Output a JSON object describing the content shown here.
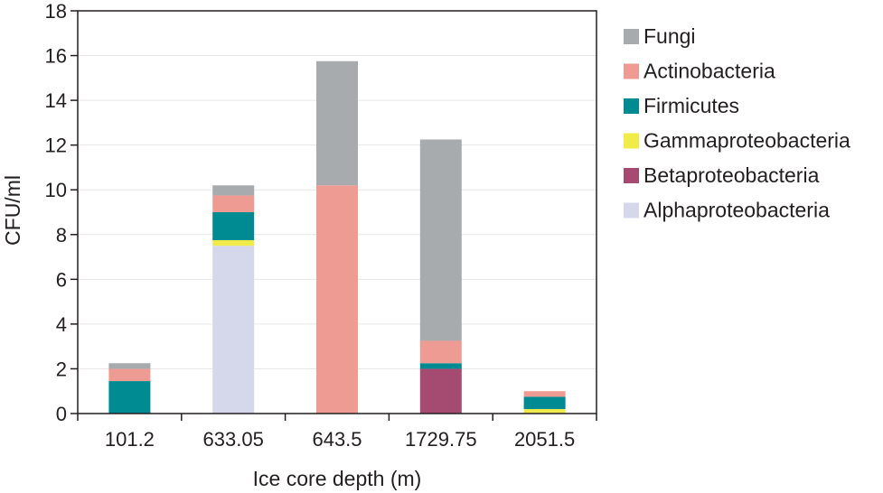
{
  "chart_data": {
    "type": "bar",
    "stacked": true,
    "title": "",
    "xlabel": "Ice core depth (m)",
    "ylabel": "CFU/ml",
    "ylim": [
      0,
      18
    ],
    "yticks": [
      0,
      2,
      4,
      6,
      8,
      10,
      12,
      14,
      16,
      18
    ],
    "grid": true,
    "legend_position": "right",
    "categories": [
      "101.2",
      "633.05",
      "643.5",
      "1729.75",
      "2051.5"
    ],
    "series": [
      {
        "name": "Alphaproteobacteria",
        "color": "#d5d7ea",
        "values": [
          0,
          7.5,
          0,
          0,
          0
        ]
      },
      {
        "name": "Betaproteobacteria",
        "color": "#a54b72",
        "values": [
          0,
          0,
          0,
          2.0,
          0
        ]
      },
      {
        "name": "Gammaproteobacteria",
        "color": "#f1eb4a",
        "values": [
          0,
          0.25,
          0,
          0,
          0.2
        ]
      },
      {
        "name": "Firmicutes",
        "color": "#008b92",
        "values": [
          1.45,
          1.25,
          0,
          0.25,
          0.55
        ]
      },
      {
        "name": "Actinobacteria",
        "color": "#ee9c93",
        "values": [
          0.55,
          0.75,
          10.2,
          1.0,
          0.25
        ]
      },
      {
        "name": "Fungi",
        "color": "#a8abae",
        "values": [
          0.25,
          0.45,
          5.55,
          9.0,
          0
        ]
      }
    ],
    "legend_order": [
      "Fungi",
      "Actinobacteria",
      "Firmicutes",
      "Gammaproteobacteria",
      "Betaproteobacteria",
      "Alphaproteobacteria"
    ]
  }
}
